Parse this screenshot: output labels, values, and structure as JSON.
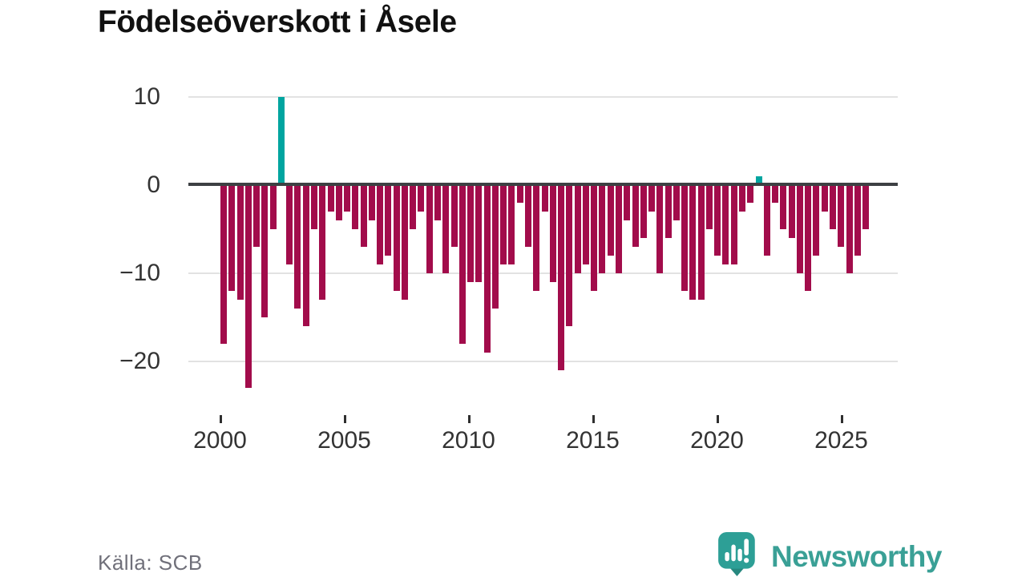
{
  "title": "Födelseöverskott i Åsele",
  "source": "Källa: SCB",
  "logo": {
    "text": "Newsworthy"
  },
  "colors": {
    "negative": "#a20c4b",
    "positive": "#00a5a0",
    "zero_line": "#3d4043",
    "gridline": "#e2e2e2",
    "axis_text": "#333333",
    "source_text": "#70707a",
    "logo_teal": "#3aa096",
    "title_text": "#111111",
    "background": "#ffffff"
  },
  "chart_data": {
    "type": "bar",
    "title": "Födelseöverskott i Åsele",
    "start_year": 2000,
    "bars_per_year": 3,
    "values": [
      -18,
      -12,
      -13,
      -23,
      -7,
      -15,
      -5,
      10,
      -9,
      -14,
      -16,
      -5,
      -13,
      -3,
      -4,
      -3,
      -5,
      -7,
      -4,
      -9,
      -8,
      -12,
      -13,
      -5,
      -3,
      -10,
      -4,
      -10,
      -7,
      -18,
      -11,
      -11,
      -19,
      -14,
      -9,
      -9,
      -2,
      -7,
      -12,
      -3,
      -11,
      -21,
      -16,
      -10,
      -9,
      -12,
      -10,
      -8,
      -10,
      -4,
      -7,
      -6,
      -3,
      -10,
      -6,
      -4,
      -12,
      -13,
      -13,
      -5,
      -8,
      -9,
      -9,
      -3,
      -2,
      1,
      -8,
      -2,
      -5,
      -6,
      -10,
      -12,
      -8,
      -3,
      -5,
      -7,
      -10,
      -8,
      -5
    ],
    "x_ticks": [
      2000,
      2005,
      2010,
      2015,
      2020,
      2025
    ],
    "y_ticks": [
      10,
      0,
      -10,
      -20
    ],
    "ylim": [
      -23.5,
      10.5
    ],
    "grid": true,
    "legend": "none",
    "positive_color": "#00a5a0",
    "negative_color": "#a20c4b"
  }
}
